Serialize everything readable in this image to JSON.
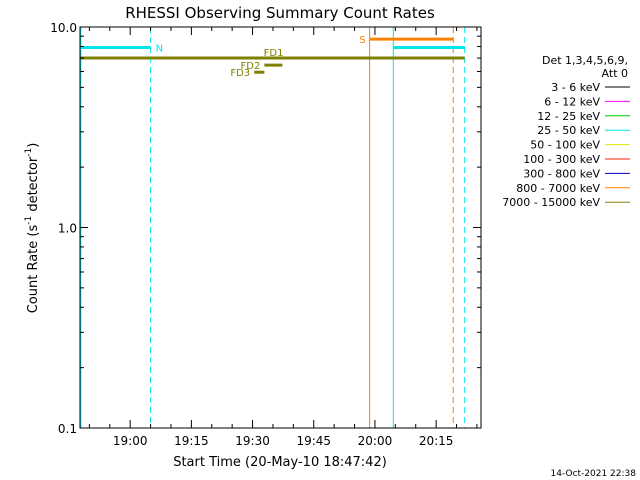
{
  "chart_data": {
    "type": "line",
    "title": "RHESSI Observing Summary Count Rates",
    "xlabel": "Start Time (20-May-10 18:47:42)",
    "ylabel_main": "Count Rate (s",
    "ylabel_sup1": "-1",
    "ylabel_mid": " detector",
    "ylabel_sup2": "-1",
    "ylabel_end": ")",
    "yscale": "log",
    "ylim": [
      0.1,
      10.0
    ],
    "xlim_minutes_after_start": [
      0,
      98.3
    ],
    "y_ticks": [
      {
        "value": 0.1,
        "label": "0.1"
      },
      {
        "value": 1.0,
        "label": "1.0"
      },
      {
        "value": 10.0,
        "label": "10.0"
      }
    ],
    "x_ticks": [
      {
        "minutes": 12.3,
        "label": "19:00"
      },
      {
        "minutes": 27.3,
        "label": "19:15"
      },
      {
        "minutes": 42.3,
        "label": "19:30"
      },
      {
        "minutes": 57.3,
        "label": "19:45"
      },
      {
        "minutes": 72.3,
        "label": "20:00"
      },
      {
        "minutes": 87.3,
        "label": "20:15"
      }
    ],
    "legend_header": [
      "Det 1,3,4,5,6,9,",
      "Att 0"
    ],
    "series": [
      {
        "name": "3 - 6 keV",
        "color": "#000000"
      },
      {
        "name": "6 - 12 keV",
        "color": "#ff00ff"
      },
      {
        "name": "12 - 25 keV",
        "color": "#00cc00"
      },
      {
        "name": "25 - 50 keV",
        "color": "#00e5ee"
      },
      {
        "name": "50 - 100 keV",
        "color": "#e6e600"
      },
      {
        "name": "100 - 300 keV",
        "color": "#ff2000"
      },
      {
        "name": "300 - 800 keV",
        "color": "#0000cc"
      },
      {
        "name": "800 - 7000 keV",
        "color": "#ff8000"
      },
      {
        "name": "7000 - 15000 keV",
        "color": "#808000"
      }
    ],
    "flag_segments": [
      {
        "label": "N",
        "color": "#00e5ee",
        "y": 7.9,
        "x0": 0,
        "x1": 17.3,
        "label_side": "right"
      },
      {
        "label": "",
        "color": "#00e5ee",
        "y": 7.9,
        "x0": 76.8,
        "x1": 94.3,
        "label_side": "none"
      },
      {
        "label": "S",
        "color": "#ff8000",
        "y": 8.7,
        "x0": 71.0,
        "x1": 91.5,
        "label_side": "left"
      },
      {
        "label": "",
        "color": "#808000",
        "y": 7.0,
        "x0": 0,
        "x1": 94.3,
        "label_side": "none"
      },
      {
        "label": "FD1",
        "color": "#808000",
        "y": 7.0,
        "x0": 44.6,
        "x1": 50.3,
        "label_side": "center"
      },
      {
        "label": "FD2",
        "color": "#808000",
        "y": 6.45,
        "x0": 45.2,
        "x1": 49.6,
        "label_side": "left"
      },
      {
        "label": "FD3",
        "color": "#808000",
        "y": 5.95,
        "x0": 42.7,
        "x1": 45.2,
        "label_side": "left"
      }
    ],
    "vertical_lines": [
      {
        "minutes": 0.2,
        "color": "#00e5ee",
        "style": "solid"
      },
      {
        "minutes": 17.3,
        "color": "#00e5ee",
        "style": "dashed"
      },
      {
        "minutes": 71.0,
        "color": "#ff8000",
        "style": "solid"
      },
      {
        "minutes": 76.8,
        "color": "#00e5ee",
        "style": "solid"
      },
      {
        "minutes": 91.5,
        "color": "#ff8000",
        "style": "dashed"
      },
      {
        "minutes": 94.3,
        "color": "#00e5ee",
        "style": "dashed"
      }
    ]
  },
  "footer": {
    "date_stamp": "14-Oct-2021 22:38"
  }
}
